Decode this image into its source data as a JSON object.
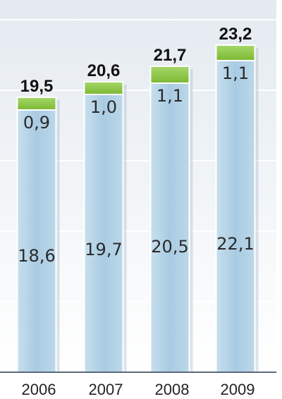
{
  "chart_data": {
    "type": "bar",
    "stacked": true,
    "categories": [
      "2006",
      "2007",
      "2008",
      "2009"
    ],
    "series": [
      {
        "values": [
          18.6,
          19.7,
          20.5,
          22.1
        ],
        "labels": [
          "18,6",
          "19,7",
          "20,5",
          "22,1"
        ],
        "color": "#b5d3e6"
      },
      {
        "values": [
          0.9,
          1.0,
          1.1,
          1.1
        ],
        "labels": [
          "0,9",
          "1,0",
          "1,1",
          "1,1"
        ],
        "color": "#8cc63f"
      }
    ],
    "totals": [
      19.5,
      20.6,
      21.7,
      23.2
    ],
    "total_labels": [
      "19,5",
      "20,6",
      "21,7",
      "23,2"
    ],
    "grid": true,
    "colors": {
      "bar_top": "#8cc63f",
      "bar_base": "#b5d3e6",
      "background_top": "#e8edf2",
      "background_bottom": "#ffffff",
      "grid": "#ffffff",
      "axis": "#5a6a7a"
    }
  }
}
